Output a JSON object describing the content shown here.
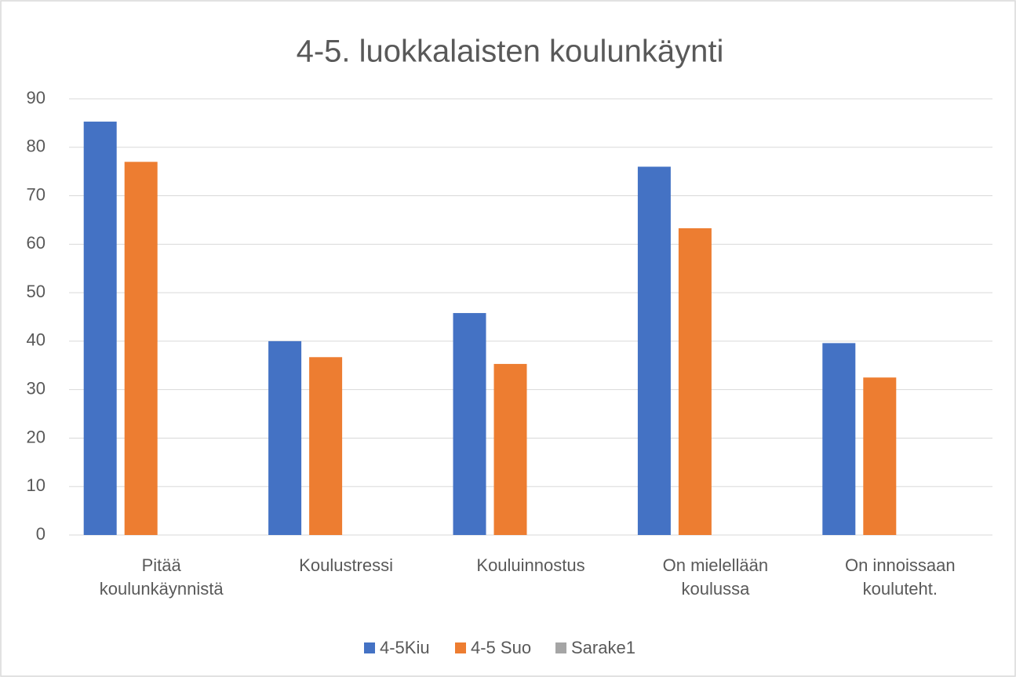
{
  "chart_data": {
    "type": "bar",
    "title": "4-5. luokkalaisten koulunkäynti",
    "categories": [
      "Pitää koulunkäynnistä",
      "Koulustressi",
      "Kouluinnostus",
      "On mielellään koulussa",
      "On innoissaan kouluteht."
    ],
    "series": [
      {
        "name": "4-5Kiu",
        "color": "#4472c4",
        "values": [
          85.3,
          40,
          45.8,
          76,
          39.6
        ]
      },
      {
        "name": "4-5 Suo",
        "color": "#ed7d31",
        "values": [
          77,
          36.7,
          35.3,
          63.3,
          32.5
        ]
      },
      {
        "name": "Sarake1",
        "color": "#a5a5a5",
        "values": [
          null,
          null,
          null,
          null,
          null
        ]
      }
    ],
    "ylim": [
      0,
      90
    ],
    "yticks": [
      0,
      10,
      20,
      30,
      40,
      50,
      60,
      70,
      80,
      90
    ],
    "grid": true,
    "legend": "bottom"
  }
}
